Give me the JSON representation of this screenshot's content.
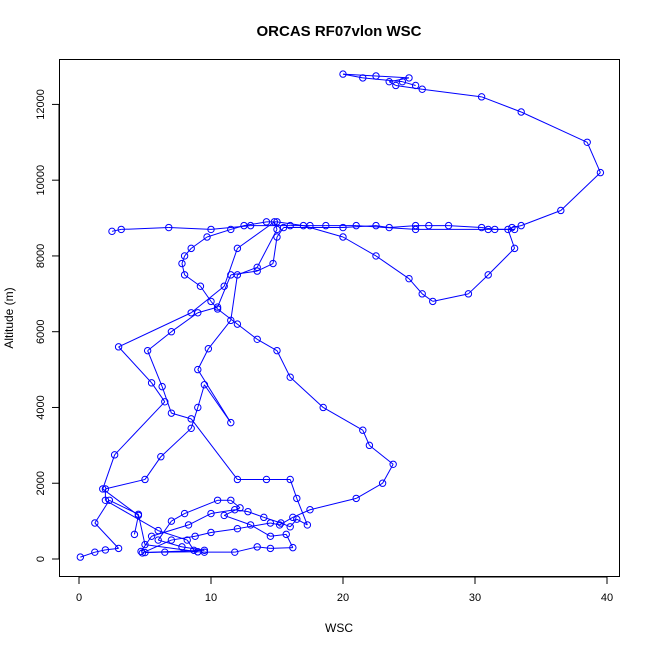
{
  "chart_data": {
    "type": "line",
    "title": "ORCAS RF07vlon WSC",
    "xlabel": "WSC",
    "ylabel": "Altitude (m)",
    "xlim": [
      0,
      40
    ],
    "ylim": [
      0,
      12750
    ],
    "x_ticks": [
      0,
      10,
      20,
      30,
      40
    ],
    "y_ticks": [
      0,
      2000,
      4000,
      6000,
      8000,
      10000,
      12000
    ],
    "grid": false,
    "series_color": "#0000FF",
    "marker": "open-circle",
    "series": [
      {
        "x": [
          0.1,
          1.2,
          2.0,
          3.0,
          1.2,
          2.3,
          4.5,
          5.0,
          9.0,
          6.5,
          5.0,
          9.5,
          7.8,
          6.0,
          7.0,
          8.0,
          10.5,
          11.5,
          12.2,
          11.0,
          13.0,
          14.5,
          15.7,
          16.2,
          14.5,
          13.5,
          11.8,
          9.5,
          9.0,
          8.7,
          8.2,
          6.0,
          2.0,
          2.0,
          5.0,
          6.2,
          8.5,
          9.0,
          9.5,
          11.5,
          9.0,
          9.8,
          11.5,
          12.0,
          13.5,
          15.0,
          14.8,
          12.0,
          11.0,
          8.5,
          3.0,
          5.5,
          6.5,
          2.7,
          1.8,
          4.5,
          4.2
        ],
        "y": [
          50,
          180,
          240,
          280,
          950,
          1550,
          1180,
          380,
          190,
          180,
          170,
          230,
          320,
          500,
          1000,
          1200,
          1550,
          1550,
          1350,
          1150,
          900,
          600,
          650,
          300,
          280,
          320,
          180,
          180,
          190,
          230,
          500,
          750,
          1550,
          1850,
          2100,
          2700,
          3450,
          4000,
          4600,
          3600,
          5000,
          5550,
          6300,
          7500,
          7700,
          8700,
          8900,
          8200,
          7200,
          6500,
          5600,
          4650,
          4150,
          2750,
          1850,
          1150,
          650
        ]
      },
      {
        "x": [
          4.7,
          5.5,
          8.3,
          10.0,
          11.8,
          12.8,
          14.0,
          15.3,
          16.0,
          16.5,
          17.3,
          16.5,
          16.0,
          14.2,
          12.0,
          8.5,
          7.0,
          6.3,
          5.2,
          7.0,
          9.0,
          10.5,
          11.5,
          13.5,
          14.7,
          15.0,
          15.5,
          20.0,
          22.5,
          23.5,
          25.5,
          26.5,
          28.0,
          30.5,
          31.5,
          33.0,
          31.0,
          25.5,
          21.0,
          18.7,
          17.5,
          16.0,
          13.0,
          10.0,
          6.8,
          3.2,
          2.5
        ],
        "y": [
          200,
          600,
          900,
          1200,
          1300,
          1250,
          1100,
          950,
          850,
          1050,
          900,
          1600,
          2100,
          2100,
          2100,
          3700,
          3850,
          4550,
          5500,
          6000,
          6500,
          6650,
          7500,
          7600,
          7800,
          8500,
          8750,
          8750,
          8800,
          8750,
          8800,
          8800,
          8800,
          8750,
          8700,
          8700,
          8700,
          8700,
          8800,
          8800,
          8800,
          8800,
          8800,
          8700,
          8750,
          8700,
          8650
        ]
      },
      {
        "x": [
          4.8,
          7.0,
          8.8,
          10.0,
          12.0,
          14.5,
          15.2,
          16.2,
          17.5,
          21.0,
          23.0,
          23.8,
          22.0,
          21.5,
          18.5,
          16.0,
          15.0,
          13.5,
          12.0,
          10.5,
          10.0,
          9.2,
          8.0,
          7.8,
          8.0,
          8.5,
          9.7,
          11.5,
          12.5,
          14.2,
          15.0,
          17.0,
          20.0,
          22.5,
          25.0,
          26.0,
          26.8,
          29.5,
          31.0,
          33.0,
          32.5,
          32.8,
          33.5,
          36.5,
          39.5,
          38.5,
          33.5,
          30.5,
          26.0,
          24.0,
          23.5,
          25.0,
          22.5,
          20.0,
          21.5,
          24.5,
          25.5
        ],
        "y": [
          160,
          500,
          600,
          700,
          800,
          950,
          900,
          1100,
          1300,
          1600,
          2000,
          2500,
          3000,
          3400,
          4000,
          4800,
          5500,
          5800,
          6200,
          6600,
          6800,
          7200,
          7500,
          7800,
          8000,
          8200,
          8500,
          8700,
          8800,
          8900,
          8900,
          8800,
          8500,
          8000,
          7400,
          7000,
          6800,
          7000,
          7500,
          8200,
          8700,
          8750,
          8800,
          9200,
          10200,
          11000,
          11800,
          12200,
          12400,
          12500,
          12600,
          12700,
          12750,
          12800,
          12700,
          12600,
          12500
        ]
      }
    ]
  }
}
